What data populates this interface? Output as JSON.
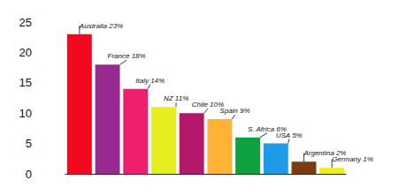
{
  "chart_data": {
    "type": "bar",
    "categories": [
      "Australia",
      "France",
      "Italy",
      "NZ",
      "Chile",
      "Spain",
      "S. Africa",
      "USA",
      "Argentina",
      "Germany"
    ],
    "values": [
      23,
      18,
      14,
      11,
      10,
      9,
      6,
      5,
      2,
      1
    ],
    "value_labels": [
      "Australia 23%",
      "France 18%",
      "Italy 14%",
      "NZ 11%",
      "Chile 10%",
      "Spain 9%",
      "S. Africa 6%",
      "USA 5%",
      "Argentina 2%",
      "Germany 1%"
    ],
    "colors": [
      "#f5071f",
      "#972a91",
      "#f01f6e",
      "#e6ee1f",
      "#b4186c",
      "#ffb233",
      "#0fa140",
      "#1e9ae6",
      "#7a3c12",
      "#f2ee1c"
    ],
    "ylim": [
      0,
      25
    ],
    "yticks": [
      0,
      5,
      10,
      15,
      20,
      25
    ],
    "grid": false,
    "data_labels": true,
    "tick_labels": "y"
  }
}
